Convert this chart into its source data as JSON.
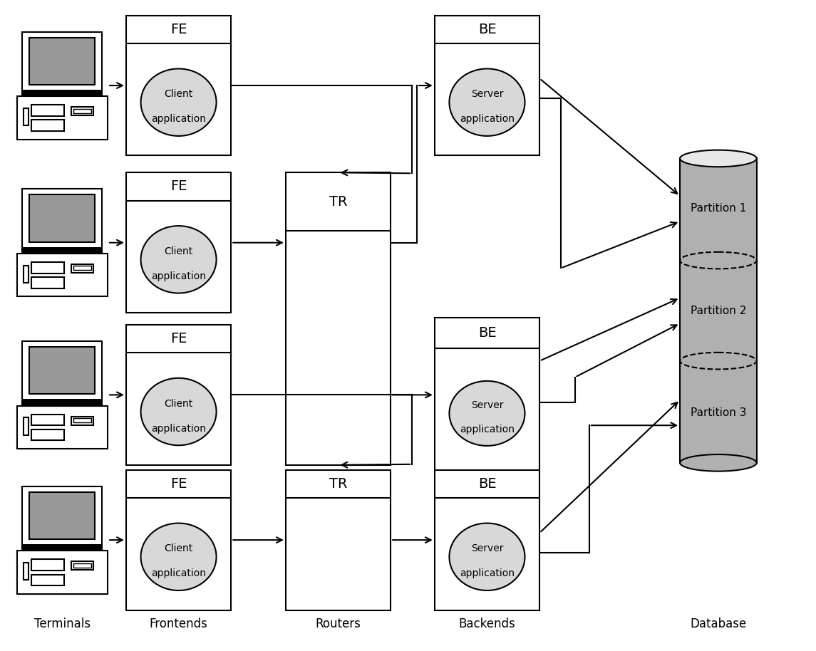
{
  "bg_color": "#ffffff",
  "screen_gray": "#999999",
  "cylinder_gray": "#b0b0b0",
  "cylinder_top": "#e8e8e8",
  "ellipse_gray": "#d8d8d8",
  "column_labels": [
    "Terminals",
    "Frontends",
    "Routers",
    "Backends",
    "Database"
  ],
  "lw": 1.5
}
